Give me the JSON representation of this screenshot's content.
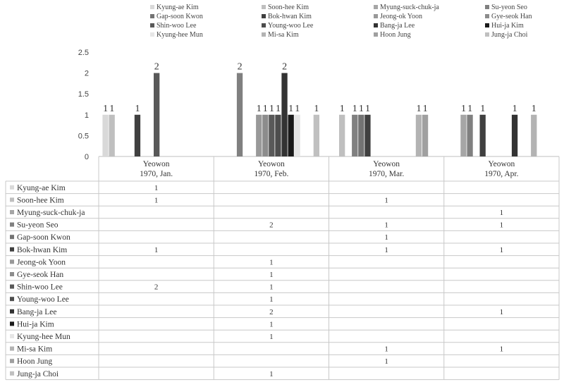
{
  "chart_data": {
    "type": "bar",
    "categories": [
      "Yeowon\n1970, Jan.",
      "Yeowon\n1970, Feb.",
      "Yeowon\n1970, Mar.",
      "Yeowon\n1970, Apr."
    ],
    "ylim": [
      0,
      2.5
    ],
    "yticks": [
      "0",
      "0.5",
      "1",
      "1.5",
      "2",
      "2.5"
    ],
    "legend_position": "top",
    "data_table": true,
    "series": [
      {
        "name": "Kyung-ae Kim",
        "color": "#d9d9d9",
        "values": [
          1,
          null,
          null,
          null
        ]
      },
      {
        "name": "Soon-hee Kim",
        "color": "#bfbfbf",
        "values": [
          1,
          null,
          1,
          null
        ]
      },
      {
        "name": "Myung-suck-chuk-ja",
        "color": "#a6a6a6",
        "values": [
          null,
          null,
          null,
          1
        ]
      },
      {
        "name": "Su-yeon Seo",
        "color": "#808080",
        "values": [
          null,
          2,
          1,
          1
        ]
      },
      {
        "name": "Gap-soon Kwon",
        "color": "#737373",
        "values": [
          null,
          null,
          1,
          null
        ]
      },
      {
        "name": "Bok-hwan Kim",
        "color": "#404040",
        "values": [
          1,
          null,
          1,
          1
        ]
      },
      {
        "name": "Jeong-ok Yoon",
        "color": "#999999",
        "values": [
          null,
          1,
          null,
          null
        ]
      },
      {
        "name": "Gye-seok Han",
        "color": "#8c8c8c",
        "values": [
          null,
          1,
          null,
          null
        ]
      },
      {
        "name": "Shin-woo Lee",
        "color": "#595959",
        "values": [
          2,
          1,
          null,
          null
        ]
      },
      {
        "name": "Young-woo Lee",
        "color": "#4d4d4d",
        "values": [
          null,
          1,
          null,
          null
        ]
      },
      {
        "name": "Bang-ja Lee",
        "color": "#333333",
        "values": [
          null,
          2,
          null,
          1
        ]
      },
      {
        "name": "Hui-ja Kim",
        "color": "#1a1a1a",
        "values": [
          null,
          1,
          null,
          null
        ]
      },
      {
        "name": "Kyung-hee Mun",
        "color": "#e6e6e6",
        "values": [
          null,
          1,
          null,
          null
        ]
      },
      {
        "name": "Mi-sa Kim",
        "color": "#b3b3b3",
        "values": [
          null,
          null,
          1,
          1
        ]
      },
      {
        "name": "Hoon Jung",
        "color": "#a0a0a0",
        "values": [
          null,
          null,
          1,
          null
        ]
      },
      {
        "name": "Jung-ja Choi",
        "color": "#c0c0c0",
        "values": [
          null,
          1,
          null,
          null
        ]
      }
    ]
  }
}
